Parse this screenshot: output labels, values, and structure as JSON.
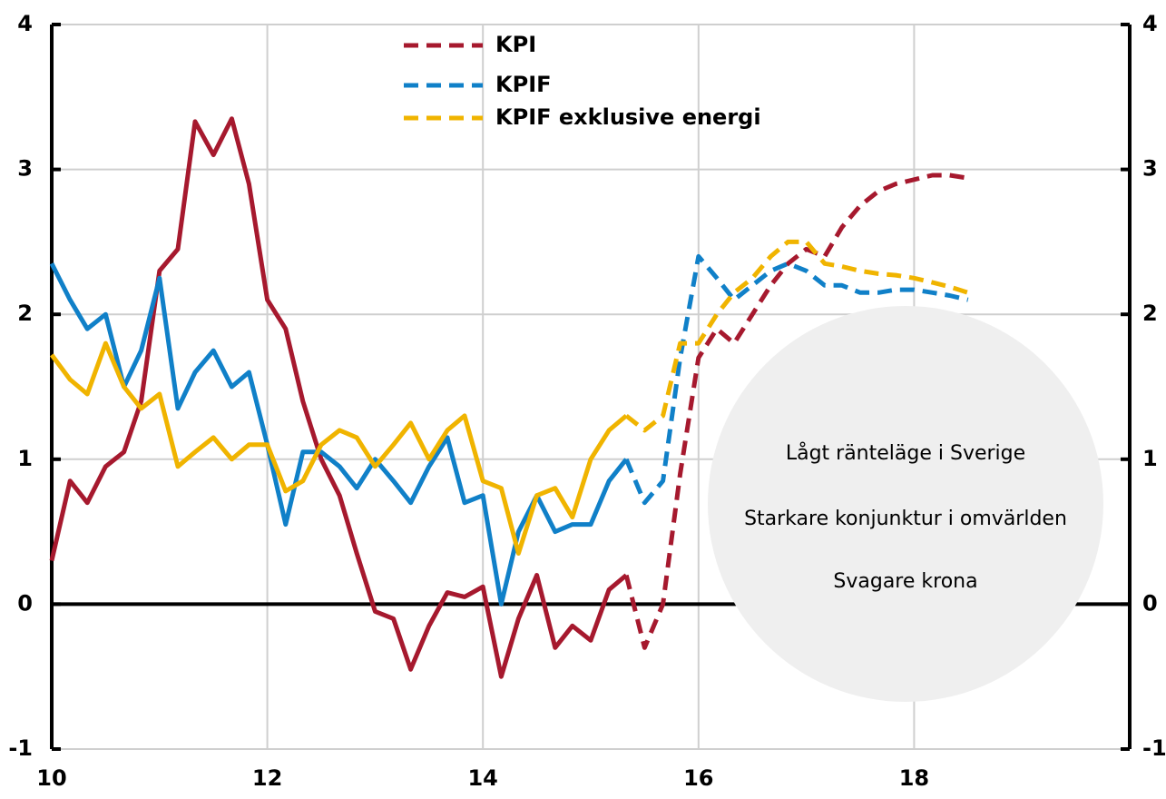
{
  "chart_data": {
    "type": "line",
    "x": [
      10,
      10.17,
      10.33,
      10.5,
      10.67,
      10.83,
      11,
      11.17,
      11.33,
      11.5,
      11.67,
      11.83,
      12,
      12.17,
      12.33,
      12.5,
      12.67,
      12.83,
      13,
      13.17,
      13.33,
      13.5,
      13.67,
      13.83,
      14,
      14.17,
      14.33,
      14.5,
      14.67,
      14.83,
      15,
      15.17,
      15.33,
      15.5,
      15.67,
      15.83,
      16,
      16.17,
      16.33,
      16.5,
      16.67,
      16.83,
      17,
      17.17,
      17.33,
      17.5,
      17.67,
      17.83,
      18,
      18.17,
      18.33,
      18.5
    ],
    "series": [
      {
        "name": "KPI",
        "color": "#a6192e",
        "values": [
          0.3,
          0.85,
          0.7,
          0.95,
          1.05,
          1.4,
          2.3,
          2.45,
          3.33,
          3.1,
          3.35,
          2.9,
          2.1,
          1.9,
          1.4,
          1.0,
          0.75,
          0.35,
          -0.05,
          -0.1,
          -0.45,
          -0.15,
          0.08,
          0.05,
          0.12,
          -0.5,
          -0.1,
          0.2,
          -0.3,
          -0.15,
          -0.25,
          0.1,
          0.2,
          -0.3,
          0.0,
          0.9,
          1.7,
          1.9,
          1.8,
          2.0,
          2.2,
          2.35,
          2.45,
          2.4,
          2.6,
          2.75,
          2.85,
          2.9,
          2.93,
          2.96,
          2.96,
          2.94
        ]
      },
      {
        "name": "KPIF",
        "color": "#1080c8",
        "values": [
          2.35,
          2.1,
          1.9,
          2.0,
          1.5,
          1.75,
          2.25,
          1.35,
          1.6,
          1.75,
          1.5,
          1.6,
          1.1,
          0.55,
          1.05,
          1.05,
          0.95,
          0.8,
          1.0,
          0.85,
          0.7,
          0.95,
          1.15,
          0.7,
          0.75,
          0.0,
          0.5,
          0.75,
          0.5,
          0.55,
          0.55,
          0.85,
          1.0,
          0.7,
          0.85,
          1.7,
          2.4,
          2.25,
          2.1,
          2.2,
          2.3,
          2.35,
          2.3,
          2.2,
          2.2,
          2.15,
          2.15,
          2.17,
          2.17,
          2.15,
          2.13,
          2.1
        ]
      },
      {
        "name": "KPIF exklusive energi",
        "color": "#f0b400",
        "values": [
          1.72,
          1.55,
          1.45,
          1.8,
          1.5,
          1.35,
          1.45,
          0.95,
          1.05,
          1.15,
          1.0,
          1.1,
          1.1,
          0.78,
          0.85,
          1.1,
          1.2,
          1.15,
          0.95,
          1.1,
          1.25,
          1.0,
          1.2,
          1.3,
          0.85,
          0.8,
          0.35,
          0.75,
          0.8,
          0.6,
          1.0,
          1.2,
          1.3,
          1.2,
          1.3,
          1.8,
          1.8,
          2.0,
          2.15,
          2.25,
          2.4,
          2.5,
          2.5,
          2.35,
          2.33,
          2.3,
          2.28,
          2.27,
          2.25,
          2.22,
          2.19,
          2.15
        ]
      }
    ],
    "forecast_from": 15.33,
    "xlim": [
      10,
      20
    ],
    "xticks": [
      10,
      12,
      14,
      16,
      18
    ],
    "ylim": [
      -1,
      4
    ],
    "yticks": [
      -1,
      0,
      1,
      2,
      3,
      4
    ],
    "y2lim": [
      -1,
      4
    ],
    "y2ticks": [
      -1,
      0,
      1,
      2,
      3,
      4
    ],
    "grid": true,
    "annotations": [
      "Lågt ränteläge i Sverige",
      "Starkare konjunktur i omvärlden",
      "Svagare krona"
    ]
  }
}
